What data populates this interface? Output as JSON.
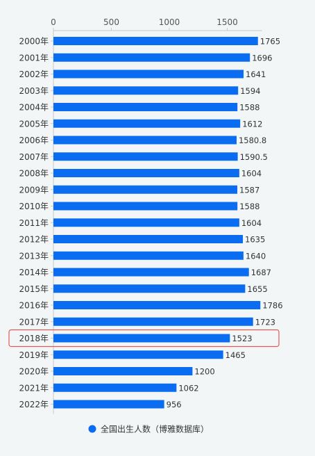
{
  "chart_data": {
    "type": "bar",
    "orientation": "horizontal",
    "categories": [
      "2000年",
      "2001年",
      "2002年",
      "2003年",
      "2004年",
      "2005年",
      "2006年",
      "2007年",
      "2008年",
      "2009年",
      "2010年",
      "2011年",
      "2012年",
      "2013年",
      "2014年",
      "2015年",
      "2016年",
      "2017年",
      "2018年",
      "2019年",
      "2020年",
      "2021年",
      "2022年"
    ],
    "series": [
      {
        "name": "全国出生人数（博雅数据库）",
        "color": "#0a6cf0",
        "values": [
          1765,
          1696,
          1641,
          1594,
          1588,
          1612,
          1580.8,
          1590.5,
          1604,
          1587,
          1588,
          1604,
          1635,
          1640,
          1687,
          1655,
          1786,
          1723,
          1523,
          1465,
          1200,
          1062,
          956
        ],
        "labels": [
          "1765",
          "1696",
          "1641",
          "1594",
          "1588",
          "1612",
          "1580.8",
          "1590.5",
          "1604",
          "1587",
          "1588",
          "1604",
          "1635",
          "1640",
          "1687",
          "1655",
          "1786",
          "1723",
          "1523",
          "1465",
          "1200",
          "1062",
          "956"
        ]
      }
    ],
    "x_ticks": [
      "0",
      "500",
      "1000",
      "1500"
    ],
    "xlim": [
      0,
      1800
    ],
    "grid": false,
    "legend_position": "bottom-center",
    "highlighted_category": "2018年",
    "highlight_color": "#e05a55"
  }
}
